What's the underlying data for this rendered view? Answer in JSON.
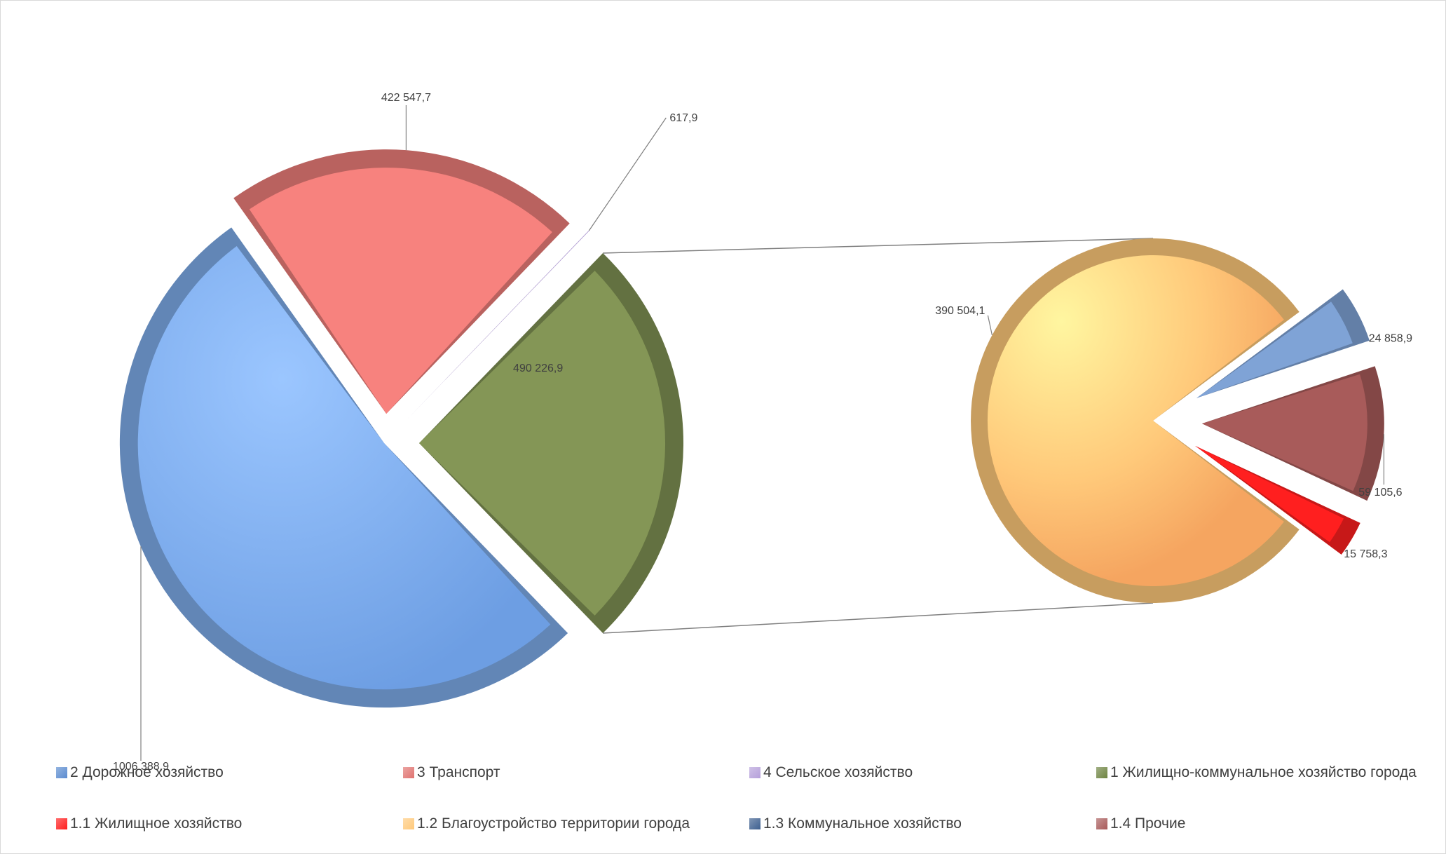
{
  "chart_data": {
    "type": "pie",
    "subtype": "pie-of-pie (exploded, 3D effect)",
    "main_pie": {
      "slices": [
        {
          "name": "2 Дорожное хозяйство",
          "value": 1006388.9,
          "label": "1006 388,9",
          "color": "#82B3F3"
        },
        {
          "name": "3 Транспорт",
          "value": 422547.7,
          "label": "422 547,7",
          "color": "#F7827E"
        },
        {
          "name": "4 Сельское хозяйство",
          "value": 617.9,
          "label": "617,9",
          "color": "#B59FDA"
        },
        {
          "name": "1 Жилищно-коммунальное  хозяйство города",
          "value": 490226.9,
          "label": "490 226,9",
          "color": "#849656"
        }
      ]
    },
    "secondary_pie": {
      "breakdown_of": "1 Жилищно-коммунальное  хозяйство города",
      "slices": [
        {
          "name": "1.2 Благоустройство территории города",
          "value": 390504.1,
          "label": "390 504,1",
          "color": "#FFC97A"
        },
        {
          "name": "1.3 Коммунальное хозяйство",
          "value": 24858.9,
          "label": "24 858,9",
          "color": "#7FA3D6"
        },
        {
          "name": "1.4 Прочие",
          "value": 59105.6,
          "label": "59 105,6",
          "color": "#A85B5A"
        },
        {
          "name": "1.1 Жилищное хозяйство",
          "value": 15758.3,
          "label": "15 758,3",
          "color": "#FF1F1F"
        }
      ]
    },
    "legend": {
      "position": "bottom",
      "items": [
        {
          "label": "2 Дорожное хозяйство",
          "color": "#5B8BD0"
        },
        {
          "label": "3 Транспорт",
          "color": "#E07370"
        },
        {
          "label": "4 Сельское хозяйство",
          "color": "#B59FDA"
        },
        {
          "label": "1 Жилищно-коммунальное  хозяйство города",
          "color": "#6E8442"
        },
        {
          "label": "1.1 Жилищное хозяйство",
          "color": "#FF1F1F"
        },
        {
          "label": "1.2 Благоустройство территории города",
          "color": "#FFC97A"
        },
        {
          "label": "1.3 Коммунальное хозяйство",
          "color": "#3D5F8F"
        },
        {
          "label": "1.4 Прочие",
          "color": "#A85B5A"
        }
      ]
    }
  }
}
